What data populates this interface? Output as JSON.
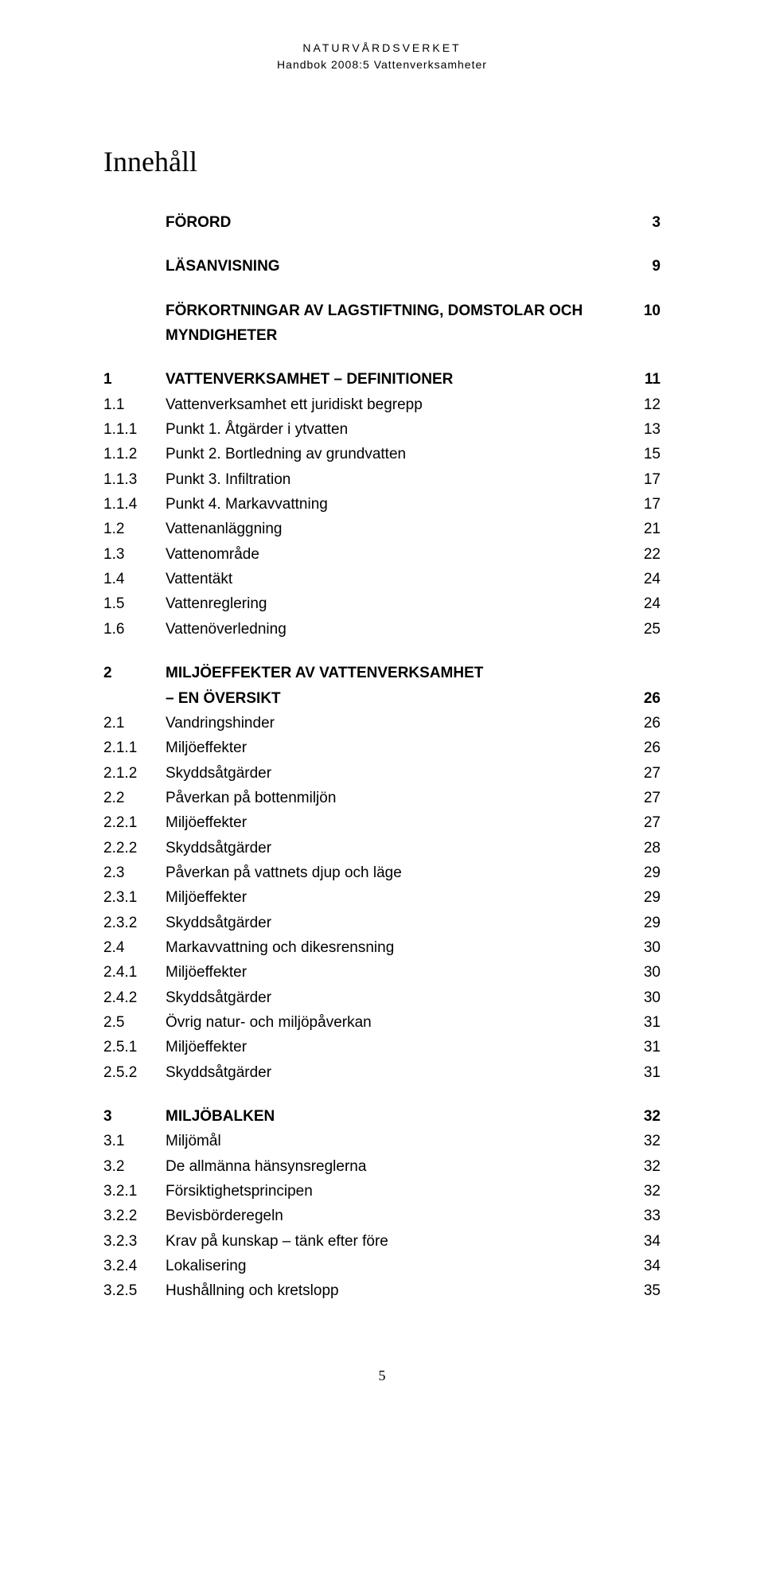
{
  "header": {
    "line1": "NATURVÅRDSVERKET",
    "line2": "Handbok 2008:5 Vattenverksamheter"
  },
  "title": "Innehåll",
  "footer_page": "5",
  "typography": {
    "body_font": "Arial/Helvetica",
    "title_font": "Georgia/serif",
    "body_fontsize_pt": 14,
    "title_fontsize_pt": 27,
    "header_fontsize_pt": 10,
    "text_color": "#000000",
    "background_color": "#ffffff"
  },
  "entries": [
    {
      "num": "",
      "label": "FÖRORD",
      "page": "3",
      "bold": true,
      "gap_after": true
    },
    {
      "num": "",
      "label": "LÄSANVISNING",
      "page": "9",
      "bold": true,
      "gap_after": true
    },
    {
      "num": "",
      "label": "FÖRKORTNINGAR AV LAGSTIFTNING, DOMSTOLAR OCH MYNDIGHETER",
      "page": "10",
      "bold": true,
      "gap_after": true
    },
    {
      "num": "1",
      "label": "VATTENVERKSAMHET – DEFINITIONER",
      "page": "11",
      "bold": true
    },
    {
      "num": "1.1",
      "label": "Vattenverksamhet ett juridiskt begrepp",
      "page": "12"
    },
    {
      "num": "1.1.1",
      "label": "Punkt 1. Åtgärder i ytvatten",
      "page": "13"
    },
    {
      "num": "1.1.2",
      "label": "Punkt 2. Bortledning av grundvatten",
      "page": "15"
    },
    {
      "num": "1.1.3",
      "label": "Punkt 3. Infiltration",
      "page": "17"
    },
    {
      "num": "1.1.4",
      "label": "Punkt 4. Markavvattning",
      "page": "17"
    },
    {
      "num": "1.2",
      "label": "Vattenanläggning",
      "page": "21"
    },
    {
      "num": "1.3",
      "label": "Vattenområde",
      "page": "22"
    },
    {
      "num": "1.4",
      "label": "Vattentäkt",
      "page": "24"
    },
    {
      "num": "1.5",
      "label": "Vattenreglering",
      "page": "24"
    },
    {
      "num": "1.6",
      "label": "Vattenöverledning",
      "page": "25",
      "gap_after": true
    },
    {
      "num": "2",
      "label": "MILJÖEFFEKTER AV VATTENVERKSAMHET",
      "page": "",
      "bold": true
    },
    {
      "num": "",
      "label": "– EN ÖVERSIKT",
      "page": "26",
      "bold": true
    },
    {
      "num": "2.1",
      "label": "Vandringshinder",
      "page": "26"
    },
    {
      "num": "2.1.1",
      "label": "Miljöeffekter",
      "page": "26"
    },
    {
      "num": "2.1.2",
      "label": "Skyddsåtgärder",
      "page": "27"
    },
    {
      "num": "2.2",
      "label": "Påverkan på bottenmiljön",
      "page": "27"
    },
    {
      "num": "2.2.1",
      "label": "Miljöeffekter",
      "page": "27"
    },
    {
      "num": "2.2.2",
      "label": "Skyddsåtgärder",
      "page": "28"
    },
    {
      "num": "2.3",
      "label": "Påverkan på vattnets djup och läge",
      "page": "29"
    },
    {
      "num": "2.3.1",
      "label": "Miljöeffekter",
      "page": "29"
    },
    {
      "num": "2.3.2",
      "label": "Skyddsåtgärder",
      "page": "29"
    },
    {
      "num": "2.4",
      "label": "Markavvattning och dikesrensning",
      "page": "30"
    },
    {
      "num": "2.4.1",
      "label": "Miljöeffekter",
      "page": "30"
    },
    {
      "num": "2.4.2",
      "label": "Skyddsåtgärder",
      "page": "30"
    },
    {
      "num": "2.5",
      "label": "Övrig natur- och miljöpåverkan",
      "page": "31"
    },
    {
      "num": "2.5.1",
      "label": "Miljöeffekter",
      "page": "31"
    },
    {
      "num": "2.5.2",
      "label": "Skyddsåtgärder",
      "page": "31",
      "gap_after": true
    },
    {
      "num": "3",
      "label": "MILJÖBALKEN",
      "page": "32",
      "bold": true
    },
    {
      "num": "3.1",
      "label": "Miljömål",
      "page": "32"
    },
    {
      "num": "3.2",
      "label": "De allmänna hänsynsreglerna",
      "page": "32"
    },
    {
      "num": "3.2.1",
      "label": "Försiktighetsprincipen",
      "page": "32"
    },
    {
      "num": "3.2.2",
      "label": "Bevisbörderegeln",
      "page": "33"
    },
    {
      "num": "3.2.3",
      "label": "Krav på kunskap – tänk efter före",
      "page": "34"
    },
    {
      "num": "3.2.4",
      "label": "Lokalisering",
      "page": "34"
    },
    {
      "num": "3.2.5",
      "label": "Hushållning och kretslopp",
      "page": "35"
    }
  ]
}
